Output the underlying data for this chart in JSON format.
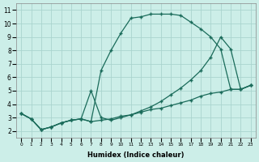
{
  "xlabel": "Humidex (Indice chaleur)",
  "bg_color": "#cceee8",
  "grid_color": "#aad4ce",
  "line_color": "#1a6b5a",
  "xlim": [
    -0.5,
    23.5
  ],
  "ylim": [
    1.5,
    11.5
  ],
  "xticks": [
    0,
    1,
    2,
    3,
    4,
    5,
    6,
    7,
    8,
    9,
    10,
    11,
    12,
    13,
    14,
    15,
    16,
    17,
    18,
    19,
    20,
    21,
    22,
    23
  ],
  "yticks": [
    2,
    3,
    4,
    5,
    6,
    7,
    8,
    9,
    10,
    11
  ],
  "curve1_x": [
    0,
    1,
    2,
    3,
    4,
    5,
    6,
    7,
    8,
    9,
    10,
    11,
    12,
    13,
    14,
    15,
    16,
    17,
    18,
    19,
    20,
    21,
    22,
    23
  ],
  "curve1_y": [
    3.3,
    2.9,
    2.1,
    2.3,
    2.6,
    2.8,
    2.9,
    2.7,
    2.8,
    2.9,
    3.1,
    3.2,
    3.4,
    3.6,
    3.7,
    3.9,
    4.1,
    4.3,
    4.6,
    4.8,
    4.9,
    5.1,
    5.1,
    5.4
  ],
  "curve2_x": [
    0,
    1,
    2,
    3,
    4,
    5,
    6,
    7,
    8,
    9,
    10,
    11,
    12,
    13,
    14,
    15,
    16,
    17,
    18,
    19,
    20,
    21,
    22,
    23
  ],
  "curve2_y": [
    3.3,
    2.9,
    2.1,
    2.3,
    2.6,
    2.8,
    2.9,
    2.7,
    6.5,
    8.0,
    9.3,
    10.4,
    10.5,
    10.7,
    10.7,
    10.7,
    10.6,
    10.1,
    9.6,
    9.0,
    8.1,
    5.1,
    5.1,
    5.4
  ],
  "curve3_x": [
    0,
    1,
    2,
    3,
    4,
    5,
    6,
    7,
    8,
    9,
    10,
    11,
    12,
    13,
    14,
    15,
    16,
    17,
    18,
    19,
    20,
    21,
    22,
    23
  ],
  "curve3_y": [
    3.3,
    2.9,
    2.1,
    2.3,
    2.6,
    2.8,
    2.9,
    5.0,
    3.0,
    2.8,
    3.0,
    3.2,
    3.5,
    3.8,
    4.2,
    4.7,
    5.2,
    5.8,
    6.5,
    7.5,
    9.0,
    8.1,
    5.1,
    5.4
  ]
}
